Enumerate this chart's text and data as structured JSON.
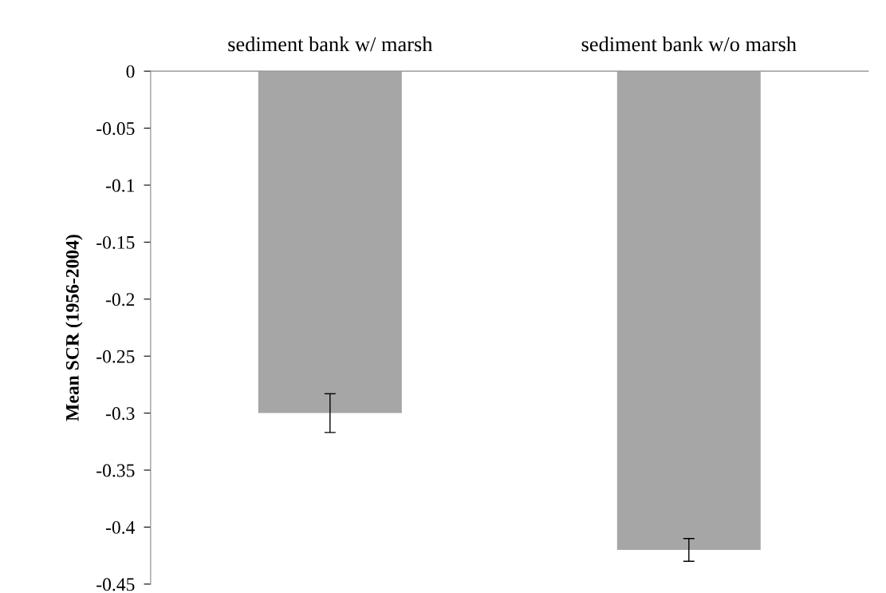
{
  "chart_data": {
    "type": "bar",
    "ylabel": "Mean SCR (1956-2004)",
    "categories": [
      "sediment bank w/ marsh",
      "sediment bank w/o marsh"
    ],
    "values": [
      -0.3,
      -0.42
    ],
    "errors": [
      0.017,
      0.01
    ],
    "color": "#a6a6a6",
    "ylim": [
      -0.45,
      0
    ],
    "yticks": [
      0,
      -0.05,
      -0.1,
      -0.15,
      -0.2,
      -0.25,
      -0.3,
      -0.35,
      -0.4,
      -0.45
    ],
    "grid": false,
    "legend": false
  }
}
